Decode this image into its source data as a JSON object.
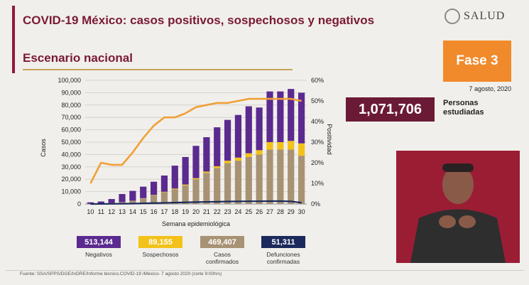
{
  "header": {
    "title": "COVID-19 México: casos positivos, sospechosos y negativos",
    "subtitle": "Escenario nacional",
    "logo_text": "SALUD",
    "fase_label": "Fase 3",
    "date": "7 agosto, 2020"
  },
  "tested": {
    "value": "1,071,706",
    "label": "Personas estudiadas"
  },
  "stats": [
    {
      "value": "513,144",
      "label": "Negativos",
      "color": "#5b2a8f"
    },
    {
      "value": "89,155",
      "label": "Sospechosos",
      "color": "#f2c21a"
    },
    {
      "value": "469,407",
      "label": "Casos confirmados",
      "color": "#a89274"
    },
    {
      "value": "51,311",
      "label": "Defunciones confirmadas",
      "color": "#1b2a5c"
    }
  ],
  "footer": "Fuente: SSA/SPPS/DGE/InDRE/Informe técnico.COVID-19 /México- 7 agosto 2020 (corte 9:00hrs)",
  "chart_data": {
    "type": "bar",
    "categories": [
      "10",
      "11",
      "12",
      "13",
      "14",
      "15",
      "16",
      "17",
      "18",
      "19",
      "20",
      "21",
      "22",
      "23",
      "24",
      "25",
      "26",
      "27",
      "28",
      "29",
      "30"
    ],
    "xlabel": "Semana epidemiológica",
    "ylabel": "Casos",
    "y2label": "Positividad",
    "ylim": [
      0,
      100000
    ],
    "y2lim": [
      0,
      60
    ],
    "yticks": [
      "0",
      "10,000",
      "20,000",
      "30,000",
      "40,000",
      "50,000",
      "60,000",
      "70,000",
      "80,000",
      "90,000",
      "100,000"
    ],
    "y2ticks": [
      "0%",
      "10%",
      "20%",
      "30%",
      "40%",
      "50%",
      "60%"
    ],
    "stacked": true,
    "series": [
      {
        "name": "Casos confirmados",
        "color": "#a89274",
        "values": [
          150,
          400,
          800,
          1500,
          2500,
          4500,
          7000,
          9500,
          12000,
          15000,
          20000,
          25000,
          29000,
          33000,
          35000,
          38000,
          40000,
          44000,
          44000,
          44000,
          39000
        ]
      },
      {
        "name": "Sospechosos",
        "color": "#f2c21a",
        "values": [
          0,
          0,
          0,
          50,
          100,
          200,
          300,
          400,
          500,
          700,
          900,
          1200,
          1500,
          2000,
          2500,
          3000,
          3500,
          6000,
          6000,
          7000,
          10000
        ]
      },
      {
        "name": "Negativos",
        "color": "#5b2a8f",
        "values": [
          1200,
          1600,
          3200,
          6500,
          8000,
          9300,
          10700,
          13100,
          18500,
          22300,
          26100,
          27800,
          31500,
          33000,
          34500,
          38000,
          34500,
          41000,
          41000,
          42000,
          41000
        ]
      }
    ],
    "deaths": {
      "name": "Defunciones",
      "color": "#1b2a5c",
      "values": [
        0,
        50,
        100,
        200,
        300,
        500,
        700,
        900,
        1100,
        1300,
        1500,
        1700,
        1800,
        2000,
        2100,
        2200,
        2200,
        2300,
        2300,
        2100,
        1000
      ]
    },
    "positivity": {
      "name": "Positividad",
      "color": "#f0a036",
      "values": [
        10,
        20,
        19,
        19,
        25,
        32,
        38,
        42,
        42,
        44,
        47,
        48,
        49,
        49,
        50,
        51,
        51,
        51,
        51,
        51,
        50
      ]
    }
  }
}
